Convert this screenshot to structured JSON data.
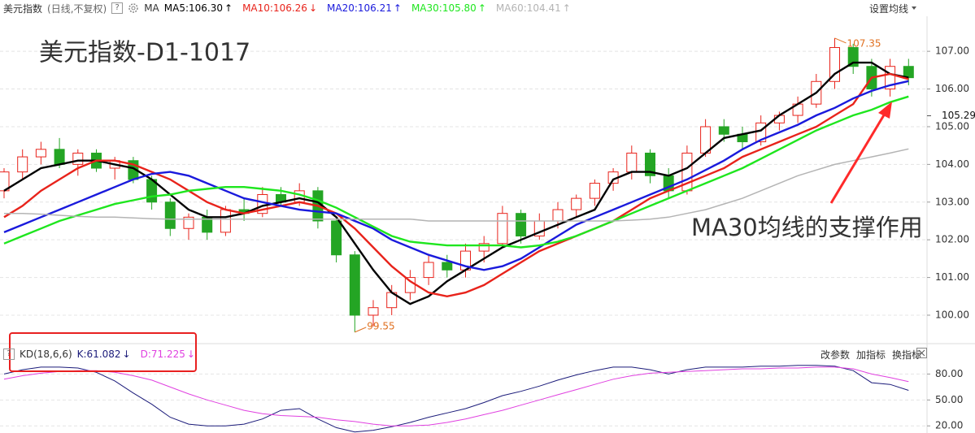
{
  "chart_data": [
    {
      "type": "candlestick",
      "name": "美元指数",
      "period": "(日线,不复权)",
      "help": "?",
      "ma_label": "MA",
      "menu": "设置均线",
      "title": "美元指数-D1-1017",
      "annotation": "MA30均线的支撑作用",
      "last_price": 105.29,
      "ylim": [
        99.31,
        107.93
      ],
      "yticks": [
        {
          "value": 100,
          "label": "100.00"
        },
        {
          "value": 101,
          "label": "101.00"
        },
        {
          "value": 102,
          "label": "102.00"
        },
        {
          "value": 103,
          "label": "103.00"
        },
        {
          "value": 104,
          "label": "104.00"
        },
        {
          "value": 105,
          "label": "105.00"
        },
        {
          "value": 106,
          "label": "106.00"
        },
        {
          "value": 107,
          "label": "107.00"
        }
      ],
      "grid": true,
      "up_color": "#e8231b",
      "down_color": "#24a524",
      "open": [
        103.3,
        103.8,
        104.2,
        104.4,
        104.0,
        104.3,
        103.9,
        104.1,
        103.6,
        103.0,
        102.3,
        102.6,
        102.2,
        102.8,
        102.7,
        103.2,
        103.0,
        103.3,
        102.5,
        101.6,
        100.0,
        100.2,
        100.6,
        101.0,
        101.4,
        101.2,
        101.7,
        101.9,
        102.7,
        102.1,
        102.5,
        102.8,
        103.1,
        103.5,
        103.8,
        104.3,
        103.7,
        103.3,
        104.3,
        105.0,
        104.8,
        104.6,
        105.1,
        105.3,
        105.6,
        106.2,
        107.1,
        106.6,
        106.0,
        106.6
      ],
      "high": [
        103.9,
        104.4,
        104.6,
        104.7,
        104.4,
        104.4,
        104.2,
        104.2,
        103.7,
        103.1,
        102.7,
        102.8,
        102.9,
        103.1,
        103.4,
        103.4,
        103.5,
        103.4,
        102.6,
        101.7,
        100.4,
        100.8,
        101.2,
        101.6,
        101.6,
        101.9,
        102.1,
        102.9,
        102.8,
        102.7,
        103.0,
        103.2,
        103.6,
        103.9,
        104.5,
        104.4,
        103.9,
        104.5,
        105.2,
        105.2,
        105.0,
        105.3,
        105.4,
        105.8,
        106.4,
        107.35,
        107.2,
        106.8,
        106.8,
        106.8
      ],
      "low": [
        103.1,
        103.6,
        104.0,
        103.9,
        103.7,
        103.8,
        103.6,
        103.5,
        102.8,
        102.1,
        102.0,
        102.0,
        102.1,
        102.5,
        102.6,
        102.9,
        102.9,
        102.3,
        101.4,
        99.55,
        99.7,
        100.0,
        100.4,
        100.8,
        101.0,
        101.0,
        101.4,
        101.8,
        101.9,
        102.0,
        102.3,
        102.6,
        102.9,
        103.3,
        103.6,
        103.5,
        103.1,
        103.2,
        104.2,
        104.6,
        104.4,
        104.5,
        104.9,
        105.1,
        105.5,
        106.0,
        106.4,
        105.8,
        105.8,
        106.1
      ],
      "close": [
        103.8,
        104.2,
        104.4,
        104.0,
        104.3,
        103.9,
        104.1,
        103.6,
        103.0,
        102.3,
        102.6,
        102.2,
        102.8,
        102.7,
        103.2,
        103.0,
        103.3,
        102.5,
        101.6,
        100.0,
        100.2,
        100.6,
        101.0,
        101.4,
        101.2,
        101.7,
        101.9,
        102.7,
        102.1,
        102.5,
        102.8,
        103.1,
        103.5,
        103.8,
        104.3,
        103.7,
        103.3,
        104.3,
        105.0,
        104.8,
        104.6,
        105.1,
        105.3,
        105.6,
        106.2,
        107.1,
        106.6,
        106.0,
        106.6,
        106.3
      ],
      "series": [
        {
          "name": "MA5:106.30",
          "trend": "↑",
          "color": "#000000",
          "values": [
            103.3,
            103.6,
            103.9,
            104.0,
            104.1,
            104.1,
            104.0,
            103.9,
            103.6,
            103.2,
            102.8,
            102.6,
            102.6,
            102.7,
            102.9,
            103.0,
            103.1,
            103.0,
            102.6,
            101.9,
            101.2,
            100.6,
            100.3,
            100.5,
            100.9,
            101.2,
            101.5,
            101.8,
            102.0,
            102.2,
            102.4,
            102.6,
            102.8,
            103.6,
            103.8,
            103.8,
            103.7,
            103.9,
            104.3,
            104.7,
            104.8,
            104.9,
            105.3,
            105.6,
            105.9,
            106.4,
            106.7,
            106.7,
            106.4,
            106.3
          ]
        },
        {
          "name": "MA10:106.26",
          "trend": "↓",
          "color": "#e8231b",
          "values": [
            102.6,
            102.9,
            103.3,
            103.6,
            103.9,
            104.1,
            104.1,
            104.0,
            103.8,
            103.6,
            103.3,
            103.0,
            102.8,
            102.7,
            102.8,
            102.9,
            103.0,
            102.9,
            102.7,
            102.3,
            101.8,
            101.3,
            100.9,
            100.6,
            100.5,
            100.6,
            100.8,
            101.1,
            101.4,
            101.7,
            101.9,
            102.1,
            102.3,
            102.5,
            102.8,
            103.1,
            103.3,
            103.5,
            103.7,
            103.9,
            104.2,
            104.4,
            104.6,
            104.8,
            105.0,
            105.3,
            105.6,
            106.3,
            106.4,
            106.26
          ]
        },
        {
          "name": "MA20:106.21",
          "trend": "↑",
          "color": "#1a1adc",
          "values": [
            102.2,
            102.4,
            102.6,
            102.8,
            103.0,
            103.2,
            103.4,
            103.6,
            103.75,
            103.8,
            103.7,
            103.5,
            103.3,
            103.1,
            103.0,
            102.9,
            102.8,
            102.75,
            102.7,
            102.5,
            102.3,
            102.0,
            101.8,
            101.6,
            101.45,
            101.3,
            101.2,
            101.3,
            101.5,
            101.8,
            102.1,
            102.4,
            102.6,
            102.8,
            103.0,
            103.2,
            103.4,
            103.6,
            103.85,
            104.1,
            104.4,
            104.65,
            104.85,
            105.05,
            105.3,
            105.5,
            105.75,
            105.95,
            106.1,
            106.21
          ]
        },
        {
          "name": "MA30:105.80",
          "trend": "↑",
          "color": "#1ee61e",
          "values": [
            101.9,
            102.1,
            102.3,
            102.5,
            102.65,
            102.8,
            102.95,
            103.05,
            103.15,
            103.2,
            103.3,
            103.35,
            103.4,
            103.4,
            103.35,
            103.3,
            103.2,
            103.05,
            102.85,
            102.6,
            102.35,
            102.1,
            101.95,
            101.9,
            101.85,
            101.85,
            101.85,
            101.85,
            101.8,
            101.85,
            101.95,
            102.1,
            102.3,
            102.5,
            102.7,
            102.9,
            103.1,
            103.3,
            103.5,
            103.7,
            103.9,
            104.15,
            104.4,
            104.65,
            104.9,
            105.1,
            105.3,
            105.45,
            105.65,
            105.8
          ]
        },
        {
          "name": "MA60:104.41",
          "trend": "↑",
          "color": "#b4b4b4",
          "values": [
            102.7,
            102.7,
            102.68,
            102.65,
            102.62,
            102.6,
            102.6,
            102.58,
            102.56,
            102.55,
            102.55,
            102.55,
            102.55,
            102.55,
            102.55,
            102.55,
            102.55,
            102.55,
            102.55,
            102.55,
            102.55,
            102.55,
            102.55,
            102.5,
            102.5,
            102.5,
            102.5,
            102.5,
            102.5,
            102.5,
            102.5,
            102.5,
            102.5,
            102.5,
            102.52,
            102.55,
            102.6,
            102.7,
            102.8,
            102.95,
            103.1,
            103.3,
            103.5,
            103.7,
            103.85,
            104.0,
            104.1,
            104.2,
            104.3,
            104.41
          ]
        }
      ]
    },
    {
      "type": "line",
      "help": "?",
      "title": "KD(18,6,6)",
      "buttons": [
        "改参数",
        "加指标",
        "换指标"
      ],
      "ylim": [
        12.7,
        94.5
      ],
      "yticks": [
        {
          "value": 20,
          "label": "20.00"
        },
        {
          "value": 50,
          "label": "50.00"
        },
        {
          "value": 80,
          "label": "80.00"
        }
      ],
      "grid": true,
      "series": [
        {
          "name": "K:61.082",
          "trend": "↓",
          "color": "#1b1b7a",
          "values": [
            80,
            85,
            88,
            88,
            87,
            82,
            72,
            58,
            45,
            30,
            22,
            20,
            20,
            22,
            28,
            38,
            40,
            28,
            18,
            13,
            15,
            19,
            24,
            30,
            35,
            40,
            47,
            55,
            60,
            66,
            73,
            79,
            84,
            88,
            88,
            85,
            80,
            85,
            88,
            88,
            88,
            89,
            89,
            90,
            90,
            89,
            84,
            70,
            68,
            61.082
          ]
        },
        {
          "name": "D:71.225",
          "trend": "↓",
          "color": "#e040e0",
          "values": [
            74,
            78,
            81,
            83,
            84,
            84,
            82,
            78,
            73,
            65,
            57,
            50,
            44,
            38,
            34,
            32,
            31,
            30,
            27,
            25,
            22,
            20,
            20,
            21,
            24,
            28,
            33,
            38,
            44,
            50,
            56,
            62,
            68,
            74,
            78,
            81,
            82,
            83,
            84,
            85,
            86,
            86,
            87,
            87,
            88,
            88,
            86,
            80,
            76,
            71.225
          ]
        }
      ]
    }
  ]
}
